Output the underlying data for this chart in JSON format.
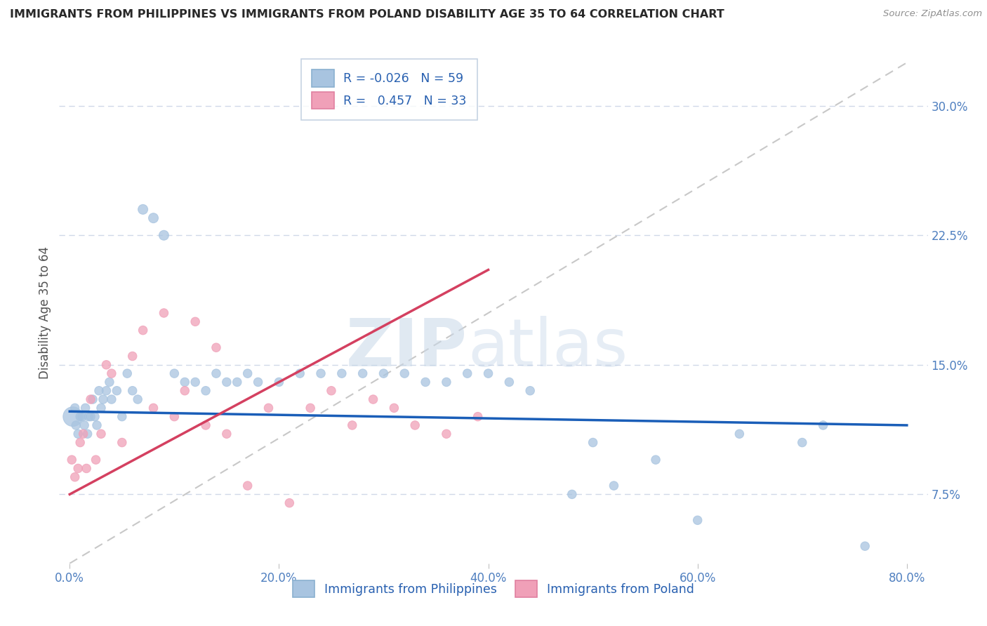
{
  "title": "IMMIGRANTS FROM PHILIPPINES VS IMMIGRANTS FROM POLAND DISABILITY AGE 35 TO 64 CORRELATION CHART",
  "source": "Source: ZipAtlas.com",
  "xlabel_ticks": [
    "0.0%",
    "20.0%",
    "40.0%",
    "60.0%",
    "80.0%"
  ],
  "xlabel_vals": [
    0.0,
    20.0,
    40.0,
    60.0,
    80.0
  ],
  "ylabel_ticks": [
    "7.5%",
    "15.0%",
    "22.5%",
    "30.0%"
  ],
  "ylabel_vals": [
    7.5,
    15.0,
    22.5,
    30.0
  ],
  "ylabel_label": "Disability Age 35 to 64",
  "xlim": [
    -1.0,
    82.0
  ],
  "ylim": [
    3.5,
    32.5
  ],
  "legend_label1": "Immigrants from Philippines",
  "legend_label2": "Immigrants from Poland",
  "r1": -0.026,
  "n1": 59,
  "r2": 0.457,
  "n2": 33,
  "blue_color": "#a8c4e0",
  "pink_color": "#f0a0b8",
  "blue_line_color": "#1a5eb8",
  "pink_line_color": "#d44060",
  "dash_line_color": "#c8c8c8",
  "philippines_x": [
    0.3,
    0.5,
    0.6,
    0.8,
    1.0,
    1.2,
    1.4,
    1.5,
    1.7,
    1.8,
    2.0,
    2.2,
    2.4,
    2.6,
    2.8,
    3.0,
    3.2,
    3.5,
    3.8,
    4.0,
    4.5,
    5.0,
    5.5,
    6.0,
    6.5,
    7.0,
    8.0,
    9.0,
    10.0,
    11.0,
    12.0,
    13.0,
    14.0,
    15.0,
    16.0,
    17.0,
    18.0,
    20.0,
    22.0,
    24.0,
    26.0,
    28.0,
    30.0,
    32.0,
    34.0,
    36.0,
    38.0,
    40.0,
    42.0,
    44.0,
    48.0,
    50.0,
    52.0,
    56.0,
    60.0,
    64.0,
    70.0,
    72.0,
    76.0
  ],
  "philippines_y": [
    12.0,
    12.5,
    11.5,
    11.0,
    12.0,
    12.0,
    11.5,
    12.5,
    11.0,
    12.0,
    12.0,
    13.0,
    12.0,
    11.5,
    13.5,
    12.5,
    13.0,
    13.5,
    14.0,
    13.0,
    13.5,
    12.0,
    14.5,
    13.5,
    13.0,
    24.0,
    23.5,
    22.5,
    14.5,
    14.0,
    14.0,
    13.5,
    14.5,
    14.0,
    14.0,
    14.5,
    14.0,
    14.0,
    14.5,
    14.5,
    14.5,
    14.5,
    14.5,
    14.5,
    14.0,
    14.0,
    14.5,
    14.5,
    14.0,
    13.5,
    7.5,
    10.5,
    8.0,
    9.5,
    6.0,
    11.0,
    10.5,
    11.5,
    4.5
  ],
  "philippines_size": [
    400,
    80,
    80,
    80,
    80,
    80,
    80,
    80,
    80,
    80,
    80,
    80,
    80,
    80,
    80,
    80,
    80,
    80,
    80,
    80,
    80,
    80,
    80,
    80,
    80,
    100,
    100,
    100,
    80,
    80,
    80,
    80,
    80,
    80,
    80,
    80,
    80,
    80,
    80,
    80,
    80,
    80,
    80,
    80,
    80,
    80,
    80,
    80,
    80,
    80,
    80,
    80,
    80,
    80,
    80,
    80,
    80,
    80,
    80
  ],
  "poland_x": [
    0.2,
    0.5,
    0.8,
    1.0,
    1.3,
    1.6,
    2.0,
    2.5,
    3.0,
    3.5,
    4.0,
    5.0,
    6.0,
    7.0,
    8.0,
    9.0,
    10.0,
    11.0,
    12.0,
    13.0,
    14.0,
    15.0,
    17.0,
    19.0,
    21.0,
    23.0,
    25.0,
    27.0,
    29.0,
    31.0,
    33.0,
    36.0,
    39.0
  ],
  "poland_y": [
    9.5,
    8.5,
    9.0,
    10.5,
    11.0,
    9.0,
    13.0,
    9.5,
    11.0,
    15.0,
    14.5,
    10.5,
    15.5,
    17.0,
    12.5,
    18.0,
    12.0,
    13.5,
    17.5,
    11.5,
    16.0,
    11.0,
    8.0,
    12.5,
    7.0,
    12.5,
    13.5,
    11.5,
    13.0,
    12.5,
    11.5,
    11.0,
    12.0
  ],
  "poland_size": [
    80,
    80,
    80,
    80,
    80,
    80,
    80,
    80,
    80,
    80,
    80,
    80,
    80,
    80,
    80,
    80,
    80,
    80,
    80,
    80,
    80,
    80,
    80,
    80,
    80,
    80,
    80,
    80,
    80,
    80,
    80,
    80,
    80
  ],
  "watermark_zip": "ZIP",
  "watermark_atlas": "atlas",
  "bg_color": "#ffffff",
  "grid_color": "#d0d8e8",
  "blue_reg_start_x": 0.0,
  "blue_reg_end_x": 80.0,
  "pink_reg_start_x": 0.0,
  "pink_reg_end_x": 40.0
}
